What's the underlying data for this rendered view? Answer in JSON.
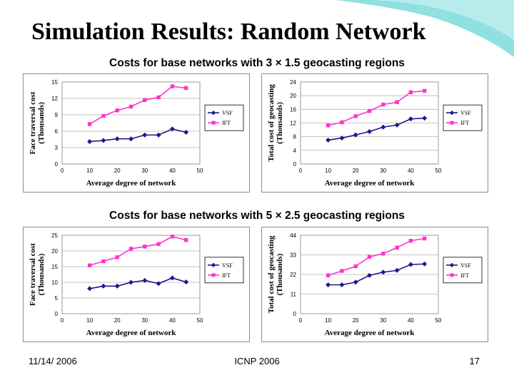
{
  "slide": {
    "title": "Simulation Results: Random Network",
    "subtitle_top": "Costs for base networks with 3 × 1.5 geocasting regions",
    "subtitle_bottom": "Costs for base networks with 5 × 2.5 geocasting regions",
    "footer": {
      "date": "11/14/ 2006",
      "conference": "ICNP 2006",
      "page": "17"
    },
    "colors": {
      "vsf": "#1a1a8c",
      "ift": "#ff33cc",
      "plot_bg": "#ffffff",
      "gridline": "#b3b3b3",
      "accent_wave": "#7fd8d8"
    }
  },
  "chart_data": [
    {
      "type": "line",
      "ylabel": "Face traversal cost (Thousands)",
      "xlabel": "Average degree of network",
      "ylim": [
        0,
        15
      ],
      "yticks": [
        0,
        3,
        6,
        9,
        12,
        15
      ],
      "xlim": [
        0,
        50
      ],
      "xticks": [
        0,
        10,
        20,
        30,
        40,
        50
      ],
      "grid": true,
      "legend": "right",
      "x": [
        10,
        15,
        20,
        25,
        30,
        35,
        40,
        45
      ],
      "series": [
        {
          "name": "VSF",
          "marker": "diamond",
          "values": [
            4.1,
            4.3,
            4.6,
            4.6,
            5.3,
            5.3,
            6.4,
            5.8
          ]
        },
        {
          "name": "IFT",
          "marker": "square",
          "values": [
            7.3,
            8.8,
            9.8,
            10.5,
            11.7,
            12.2,
            14.2,
            13.9
          ]
        }
      ]
    },
    {
      "type": "line",
      "ylabel": "Total cost of geocasting (Thousands)",
      "xlabel": "Average degree of network",
      "ylim": [
        0,
        24
      ],
      "yticks": [
        0,
        4,
        8,
        12,
        16,
        20,
        24
      ],
      "xlim": [
        0,
        50
      ],
      "xticks": [
        0,
        10,
        20,
        30,
        40,
        50
      ],
      "grid": true,
      "legend": "right",
      "x": [
        10,
        15,
        20,
        25,
        30,
        35,
        40,
        45
      ],
      "series": [
        {
          "name": "VSF",
          "marker": "diamond",
          "values": [
            7.0,
            7.6,
            8.5,
            9.5,
            10.8,
            11.4,
            13.2,
            13.4
          ]
        },
        {
          "name": "IFT",
          "marker": "square",
          "values": [
            11.3,
            12.2,
            14.0,
            15.5,
            17.4,
            18.1,
            21.0,
            21.4
          ]
        }
      ]
    },
    {
      "type": "line",
      "ylabel": "Face traversal cost (Thousands)",
      "xlabel": "Average degree of network",
      "ylim": [
        0,
        25
      ],
      "yticks": [
        0,
        5,
        10,
        15,
        20,
        25
      ],
      "xlim": [
        0,
        50
      ],
      "xticks": [
        0,
        10,
        20,
        30,
        40,
        50
      ],
      "grid": true,
      "legend": "right",
      "x": [
        10,
        15,
        20,
        25,
        30,
        35,
        40,
        45
      ],
      "series": [
        {
          "name": "VSF",
          "marker": "diamond",
          "values": [
            8.0,
            8.8,
            8.8,
            10.0,
            10.6,
            9.6,
            11.4,
            10.1
          ]
        },
        {
          "name": "IFT",
          "marker": "square",
          "values": [
            15.4,
            16.7,
            18.0,
            20.7,
            21.4,
            22.2,
            24.6,
            23.5
          ]
        }
      ]
    },
    {
      "type": "line",
      "ylabel": "Total cost of geocasting (Thousands)",
      "xlabel": "Average degree of network",
      "ylim": [
        0,
        44
      ],
      "yticks": [
        0,
        11,
        22,
        33,
        44
      ],
      "xlim": [
        0,
        50
      ],
      "xticks": [
        0,
        10,
        20,
        30,
        40,
        50
      ],
      "grid": true,
      "legend": "right",
      "x": [
        10,
        15,
        20,
        25,
        30,
        35,
        40,
        45
      ],
      "series": [
        {
          "name": "VSF",
          "marker": "diamond",
          "values": [
            16.2,
            16.2,
            17.7,
            21.5,
            23.3,
            24.3,
            27.6,
            27.9
          ]
        },
        {
          "name": "IFT",
          "marker": "square",
          "values": [
            21.5,
            24.0,
            26.6,
            31.9,
            33.7,
            37.1,
            40.9,
            42.2
          ]
        }
      ]
    }
  ]
}
